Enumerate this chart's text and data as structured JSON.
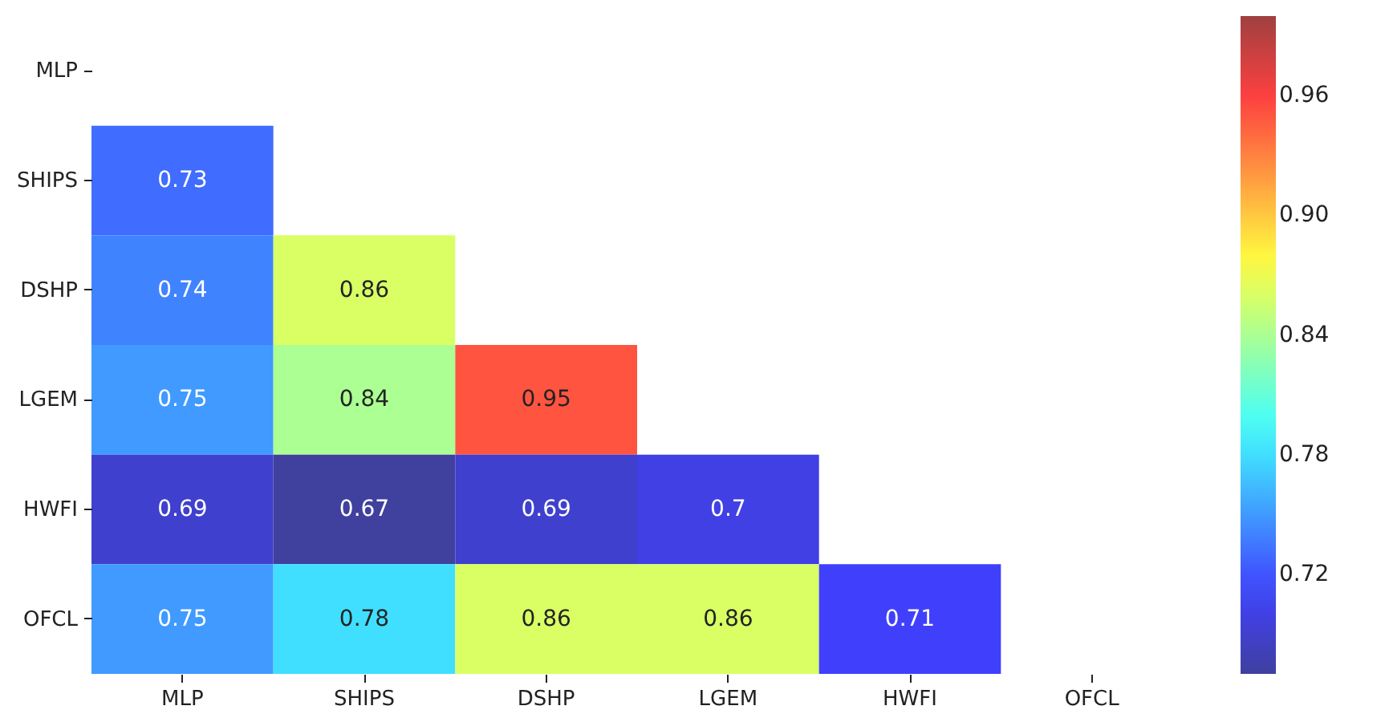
{
  "chart_data": {
    "type": "heatmap",
    "categories": [
      "MLP",
      "SHIPS",
      "DSHP",
      "LGEM",
      "HWFI",
      "OFCL"
    ],
    "y_categories": [
      "MLP",
      "SHIPS",
      "DSHP",
      "LGEM",
      "HWFI",
      "OFCL"
    ],
    "cells": [
      [
        null,
        null,
        null,
        null,
        null,
        null
      ],
      [
        0.73,
        null,
        null,
        null,
        null,
        null
      ],
      [
        0.74,
        0.86,
        null,
        null,
        null,
        null
      ],
      [
        0.75,
        0.84,
        0.95,
        null,
        null,
        null
      ],
      [
        0.69,
        0.67,
        0.69,
        0.7,
        null,
        null
      ],
      [
        0.75,
        0.78,
        0.86,
        0.86,
        0.71,
        null
      ]
    ],
    "clim": [
      0.67,
      1.0
    ],
    "cticks": [
      0.72,
      0.78,
      0.84,
      {
        "value": 0.9,
        "label": "0.90"
      },
      0.96
    ],
    "data_labels": true
  }
}
